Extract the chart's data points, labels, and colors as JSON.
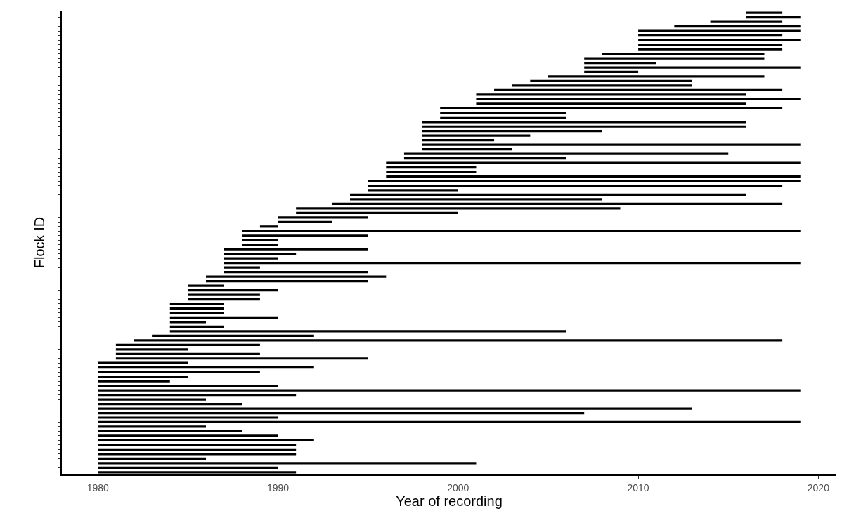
{
  "chart_data": {
    "type": "bar",
    "orientation": "horizontal",
    "xlabel": "Year of recording",
    "ylabel": "Flock ID",
    "categories": [
      null,
      null,
      null,
      null,
      null,
      null,
      null,
      null,
      null,
      null,
      null,
      null,
      null,
      null,
      null,
      null,
      null,
      null,
      null,
      null,
      null,
      null,
      null,
      null,
      null,
      null,
      null,
      null,
      null,
      null,
      null,
      null,
      null,
      null,
      null,
      null,
      null,
      null,
      null,
      null,
      null,
      null,
      null,
      null,
      null,
      null,
      null,
      null,
      null,
      null,
      null,
      null,
      null,
      null,
      null,
      null,
      null,
      null,
      null,
      null,
      null,
      null,
      null,
      null,
      null,
      null,
      null,
      null,
      null,
      null,
      null,
      null,
      null,
      null,
      null,
      null,
      null,
      null,
      null,
      null,
      null,
      null,
      null,
      null,
      null,
      null,
      null,
      null,
      null,
      null,
      null,
      null,
      null,
      null,
      null,
      null,
      null,
      null,
      null,
      null,
      null,
      null
    ],
    "base": [
      2016,
      2016,
      2014,
      2012,
      2010,
      2010,
      2010,
      2010,
      2010,
      2008,
      2007,
      2007,
      2007,
      2007,
      2005,
      2004,
      2003,
      2002,
      2001,
      2001,
      2001,
      1999,
      1999,
      1999,
      1998,
      1998,
      1998,
      1998,
      1998,
      1998,
      1998,
      1997,
      1997,
      1996,
      1996,
      1996,
      1996,
      1995,
      1995,
      1995,
      1994,
      1994,
      1993,
      1991,
      1991,
      1990,
      1990,
      1989,
      1988,
      1988,
      1988,
      1988,
      1987,
      1987,
      1987,
      1987,
      1987,
      1987,
      1986,
      1986,
      1985,
      1985,
      1985,
      1985,
      1984,
      1984,
      1984,
      1984,
      1984,
      1984,
      1984,
      1983,
      1982,
      1981,
      1981,
      1981,
      1981,
      1980,
      1980,
      1980,
      1980,
      1980,
      1980,
      1980,
      1980,
      1980,
      1980,
      1980,
      1980,
      1980,
      1980,
      1980,
      1980,
      1980,
      1980,
      1980,
      1980,
      1980,
      1980,
      1980,
      1980,
      1980
    ],
    "values": [
      2,
      3,
      4,
      7,
      9,
      8,
      9,
      8,
      8,
      9,
      10,
      4,
      12,
      3,
      12,
      9,
      10,
      16,
      15,
      18,
      15,
      19,
      7,
      7,
      18,
      18,
      10,
      6,
      4,
      21,
      5,
      18,
      9,
      23,
      5,
      5,
      23,
      24,
      23,
      5,
      22,
      14,
      25,
      18,
      9,
      5,
      3,
      1,
      31,
      7,
      2,
      2,
      8,
      4,
      3,
      32,
      2,
      8,
      10,
      9,
      2,
      5,
      4,
      4,
      3,
      3,
      3,
      6,
      2,
      3,
      22,
      9,
      36,
      8,
      4,
      8,
      14,
      5,
      12,
      9,
      5,
      4,
      10,
      39,
      11,
      6,
      8,
      33,
      27,
      10,
      39,
      6,
      8,
      10,
      12,
      11,
      11,
      11,
      6,
      21,
      10,
      11
    ],
    "color": "#000000",
    "xlim": [
      1978,
      2021
    ],
    "xticks": [
      1980,
      1990,
      2000,
      2010,
      2020
    ]
  }
}
